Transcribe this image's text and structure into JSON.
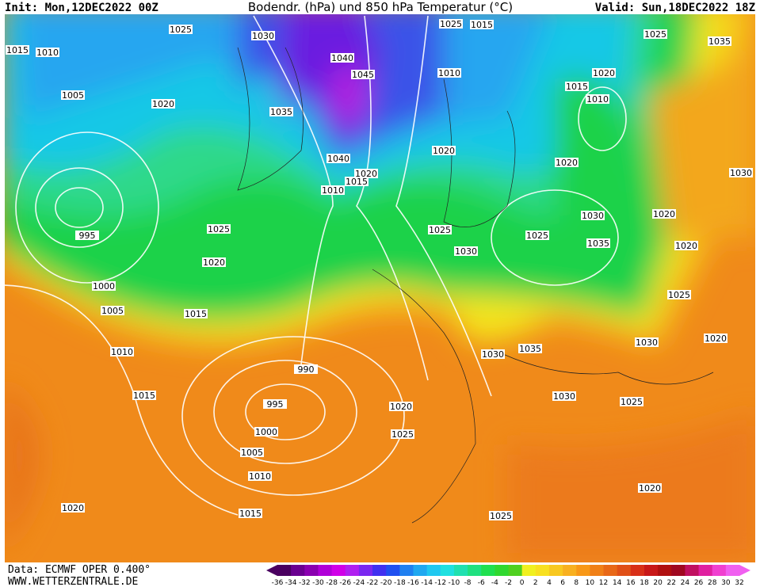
{
  "header": {
    "init": "Init: Mon,12DEC2022 00Z",
    "title": "Bodendr. (hPa) und 850 hPa Temperatur (°C)",
    "valid": "Valid: Sun,18DEC2022 18Z"
  },
  "footer": {
    "data": "Data: ECMWF OPER 0.400°",
    "site": "WWW.WETTERZENTRALE.DE"
  },
  "colorbar": {
    "ticks": [
      -36,
      -34,
      -32,
      -30,
      -28,
      -26,
      -24,
      -22,
      -20,
      -18,
      -16,
      -14,
      -12,
      -10,
      -8,
      -6,
      -4,
      -2,
      0,
      2,
      4,
      6,
      8,
      10,
      12,
      14,
      16,
      18,
      20,
      22,
      24,
      26,
      28,
      30,
      32
    ]
  },
  "isobar_labels": [
    "1025",
    "1030",
    "1015",
    "1010",
    "1025",
    "1015",
    "1025",
    "1035",
    "1040",
    "1045",
    "1010",
    "1020",
    "1005",
    "1020",
    "1015",
    "1010",
    "1035",
    "1020",
    "1020",
    "1030",
    "1040",
    "1020",
    "1015",
    "1010",
    "995",
    "1025",
    "1030",
    "1020",
    "1025",
    "1025",
    "1035",
    "1030",
    "1020",
    "1020",
    "1000",
    "1005",
    "1015",
    "1025",
    "1010",
    "1030",
    "1035",
    "1030",
    "1020",
    "990",
    "1015",
    "1030",
    "1025",
    "995",
    "1020",
    "1000",
    "1025",
    "1005",
    "1010",
    "1020",
    "1020",
    "1015",
    "1025"
  ]
}
